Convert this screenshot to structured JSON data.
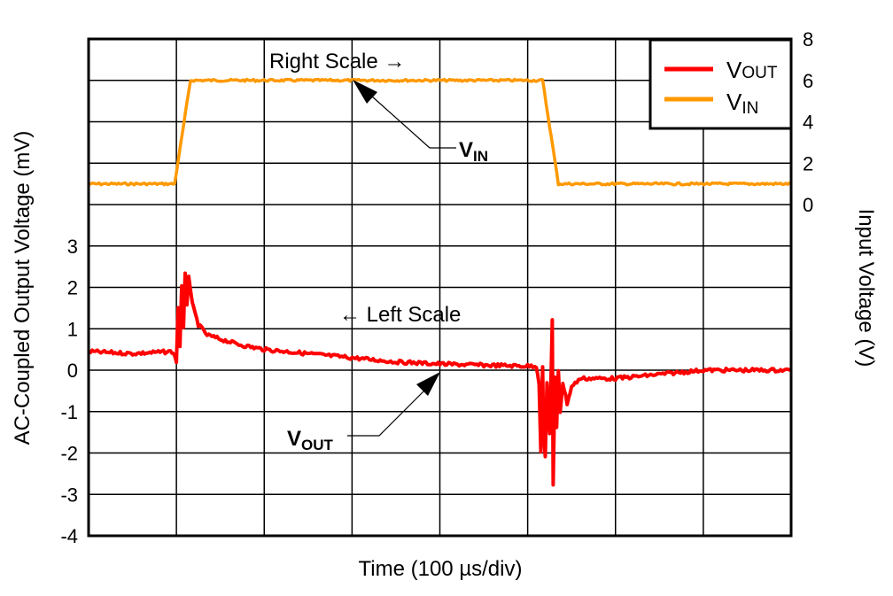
{
  "chart_data": {
    "type": "line",
    "title": "",
    "xlabel": "Time (100 µs/div)",
    "ylabel_left": "AC-Coupled Output Voltage (mV)",
    "ylabel_right": "Input Voltage (V)",
    "x_divisions": 8,
    "xlim_us": [
      0,
      800
    ],
    "ylim_left": [
      -4,
      8
    ],
    "yticks_left": [
      "3",
      "2",
      "1",
      "0",
      "-1",
      "-2",
      "-3",
      "-4"
    ],
    "ylim_right": [
      -16,
      8
    ],
    "yticks_right": [
      "8",
      "6",
      "4",
      "2",
      "0"
    ],
    "grid": true,
    "legend_position": "top-right",
    "series": [
      {
        "name_main": "V",
        "name_sub": "OUT",
        "axis": "left",
        "color": "#ff0000",
        "x": [
          0,
          50,
          95,
          99,
          100,
          102,
          104,
          106,
          108,
          110,
          112,
          114,
          118,
          125,
          135,
          150,
          175,
          200,
          250,
          300,
          350,
          400,
          450,
          500,
          510,
          513,
          515,
          517,
          518,
          520,
          522,
          525,
          527,
          528,
          529,
          531,
          533,
          535,
          537,
          540,
          545,
          550,
          560,
          600,
          650,
          700,
          800
        ],
        "y": [
          0.45,
          0.4,
          0.45,
          0.3,
          0.2,
          1.5,
          0.6,
          2.0,
          1.0,
          2.3,
          1.6,
          2.3,
          1.6,
          1.1,
          0.85,
          0.75,
          0.6,
          0.5,
          0.4,
          0.3,
          0.2,
          0.15,
          0.12,
          0.1,
          0.1,
          -0.3,
          -2.0,
          0.1,
          -1.5,
          -2.1,
          -0.3,
          -1.5,
          0.2,
          1.2,
          -2.8,
          -0.2,
          -1.4,
          0.0,
          -1.0,
          -0.3,
          -0.8,
          -0.4,
          -0.2,
          -0.2,
          -0.1,
          0.0,
          0.0
        ]
      },
      {
        "name_main": "V",
        "name_sub": "IN",
        "axis": "right",
        "color": "#ff9900",
        "x": [
          0,
          98,
          116,
          517,
          535,
          800
        ],
        "y": [
          1,
          1,
          6,
          6,
          1,
          1
        ]
      }
    ],
    "annotations": {
      "right_scale": "Right Scale →",
      "left_scale": "← Left Scale",
      "vin_main": "V",
      "vin_sub": "IN",
      "vout_main": "V",
      "vout_sub": "OUT"
    }
  }
}
